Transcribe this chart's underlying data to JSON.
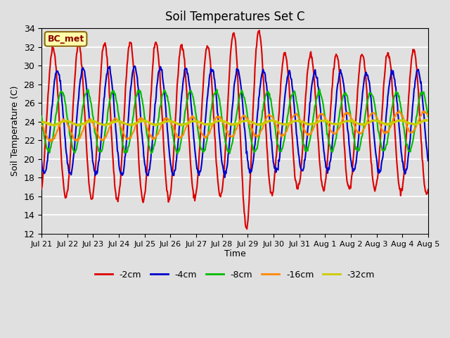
{
  "title": "Soil Temperatures Set C",
  "xlabel": "Time",
  "ylabel": "Soil Temperature (C)",
  "ylim": [
    12,
    34
  ],
  "bg_color": "#e0e0e0",
  "plot_bg_color": "#e0e0e0",
  "grid_color": "white",
  "label_box": "BC_met",
  "lines": {
    "-2cm": {
      "color": "#dd0000",
      "linewidth": 1.5
    },
    "-4cm": {
      "color": "#0000cc",
      "linewidth": 1.5
    },
    "-8cm": {
      "color": "#00bb00",
      "linewidth": 1.5
    },
    "-16cm": {
      "color": "#ff8800",
      "linewidth": 1.5
    },
    "-32cm": {
      "color": "#cccc00",
      "linewidth": 2.0
    }
  },
  "xtick_labels": [
    "Jul 21",
    "Jul 22",
    "Jul 23",
    "Jul 24",
    "Jul 25",
    "Jul 26",
    "Jul 27",
    "Jul 28",
    "Jul 29",
    "Jul 30",
    "Jul 31",
    "Aug 1",
    "Aug 2",
    "Aug 3",
    "Aug 4",
    "Aug 5"
  ],
  "n_days": 15,
  "pts_per_day": 48
}
